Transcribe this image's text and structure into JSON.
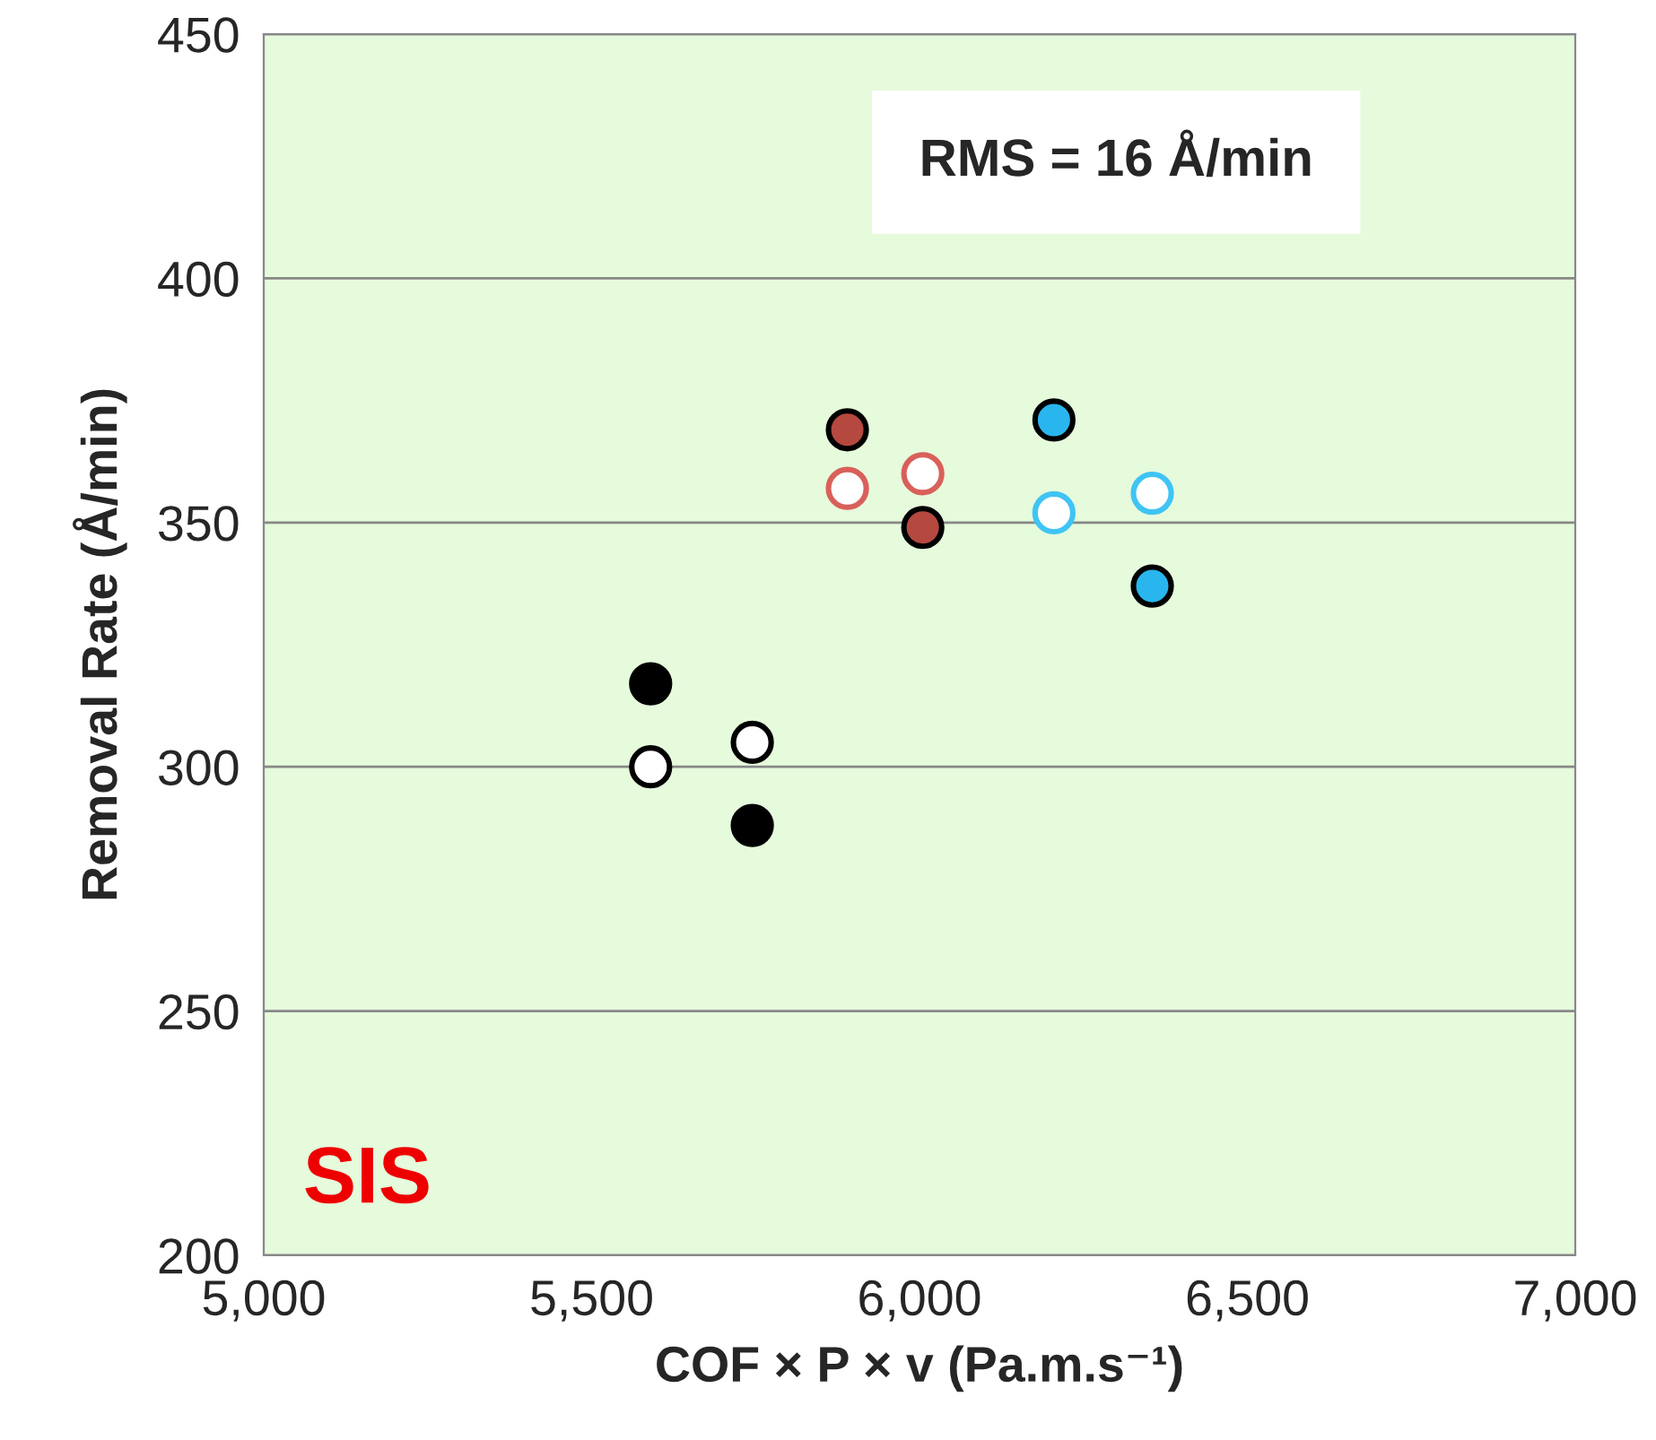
{
  "chart_data": {
    "type": "scatter",
    "xlabel": "COF × P × v (Pa.m.s⁻¹)",
    "ylabel": "Removal Rate (Å/min)",
    "xlim": [
      5000,
      7000
    ],
    "xticks": [
      {
        "value": 5000,
        "label": "5,000"
      },
      {
        "value": 5500,
        "label": "5,500"
      },
      {
        "value": 6000,
        "label": "6,000"
      },
      {
        "value": 6500,
        "label": "6,500"
      },
      {
        "value": 7000,
        "label": "7,000"
      }
    ],
    "ylim": [
      200,
      450
    ],
    "yticks": [
      200,
      250,
      300,
      350,
      400,
      450
    ],
    "grid": "y",
    "marker": "circle",
    "series": [
      {
        "color": "#000000",
        "x": [
          5590,
          5745
        ],
        "values": [
          317,
          288
        ]
      },
      {
        "color": "#000000",
        "x": [
          5590,
          5745
        ],
        "values": [
          300,
          305
        ]
      },
      {
        "color": "#b5483f",
        "x": [
          5890,
          6005
        ],
        "values": [
          369,
          349
        ]
      },
      {
        "color": "#d9605a",
        "x": [
          5890,
          6005
        ],
        "values": [
          357,
          360
        ]
      },
      {
        "color": "#29b6ee",
        "x": [
          6205,
          6355
        ],
        "values": [
          371,
          337
        ]
      },
      {
        "color": "#3fc4f4",
        "x": [
          6205,
          6355
        ],
        "values": [
          352,
          356
        ]
      }
    ],
    "annotations": [
      "RMS = 16 Å/min",
      "SIS"
    ]
  }
}
